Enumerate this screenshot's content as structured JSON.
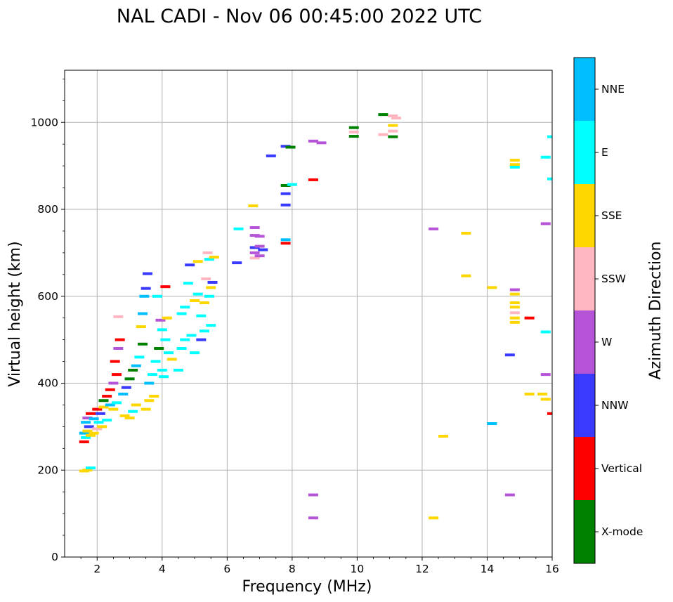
{
  "chart_data": {
    "type": "scatter",
    "title": "NAL CADI - Nov 06 00:45:00 2022 UTC",
    "xlabel": "Frequency (MHz)",
    "ylabel": "Virtual height (km)",
    "xlim": [
      1,
      16
    ],
    "ylim": [
      0,
      1120
    ],
    "xticks": [
      2,
      4,
      6,
      8,
      10,
      12,
      14,
      16
    ],
    "yticks": [
      0,
      200,
      400,
      600,
      800,
      1000
    ],
    "grid": true,
    "colorbar": {
      "label": "Azimuth Direction",
      "categories": [
        {
          "name": "X-mode",
          "color": "#008000"
        },
        {
          "name": "Vertical",
          "color": "#ff0000"
        },
        {
          "name": "NNW",
          "color": "#3a3aff"
        },
        {
          "name": "W",
          "color": "#b554d6"
        },
        {
          "name": "SSW",
          "color": "#ffb6c1"
        },
        {
          "name": "SSE",
          "color": "#ffd700"
        },
        {
          "name": "E",
          "color": "#00ffff"
        },
        {
          "name": "NNE",
          "color": "#00bfff"
        }
      ]
    },
    "points": [
      {
        "x": 1.6,
        "y": 198,
        "c": "SSE"
      },
      {
        "x": 1.7,
        "y": 200,
        "c": "SSE"
      },
      {
        "x": 1.8,
        "y": 205,
        "c": "E"
      },
      {
        "x": 1.6,
        "y": 265,
        "c": "Vertical"
      },
      {
        "x": 1.65,
        "y": 275,
        "c": "E"
      },
      {
        "x": 1.6,
        "y": 285,
        "c": "NNE"
      },
      {
        "x": 1.7,
        "y": 290,
        "c": "SSE"
      },
      {
        "x": 1.75,
        "y": 300,
        "c": "NNW"
      },
      {
        "x": 1.65,
        "y": 310,
        "c": "NNE"
      },
      {
        "x": 1.8,
        "y": 280,
        "c": "SSE"
      },
      {
        "x": 1.9,
        "y": 285,
        "c": "SSE"
      },
      {
        "x": 2.0,
        "y": 295,
        "c": "SSW"
      },
      {
        "x": 1.7,
        "y": 320,
        "c": "W"
      },
      {
        "x": 1.8,
        "y": 330,
        "c": "Vertical"
      },
      {
        "x": 1.9,
        "y": 318,
        "c": "NNE"
      },
      {
        "x": 2.0,
        "y": 340,
        "c": "Vertical"
      },
      {
        "x": 2.1,
        "y": 330,
        "c": "NNW"
      },
      {
        "x": 2.2,
        "y": 345,
        "c": "SSE"
      },
      {
        "x": 2.05,
        "y": 310,
        "c": "E"
      },
      {
        "x": 2.15,
        "y": 300,
        "c": "SSE"
      },
      {
        "x": 2.3,
        "y": 315,
        "c": "E"
      },
      {
        "x": 2.2,
        "y": 360,
        "c": "X-mode"
      },
      {
        "x": 2.3,
        "y": 370,
        "c": "Vertical"
      },
      {
        "x": 2.4,
        "y": 385,
        "c": "Vertical"
      },
      {
        "x": 2.4,
        "y": 350,
        "c": "NNE"
      },
      {
        "x": 2.5,
        "y": 340,
        "c": "SSE"
      },
      {
        "x": 2.6,
        "y": 355,
        "c": "E"
      },
      {
        "x": 2.5,
        "y": 400,
        "c": "W"
      },
      {
        "x": 2.6,
        "y": 420,
        "c": "Vertical"
      },
      {
        "x": 2.55,
        "y": 450,
        "c": "Vertical"
      },
      {
        "x": 2.65,
        "y": 480,
        "c": "W"
      },
      {
        "x": 2.7,
        "y": 500,
        "c": "Vertical"
      },
      {
        "x": 2.65,
        "y": 553,
        "c": "SSW"
      },
      {
        "x": 2.8,
        "y": 375,
        "c": "NNE"
      },
      {
        "x": 2.9,
        "y": 390,
        "c": "NNW"
      },
      {
        "x": 3.0,
        "y": 410,
        "c": "X-mode"
      },
      {
        "x": 2.85,
        "y": 325,
        "c": "SSE"
      },
      {
        "x": 3.0,
        "y": 320,
        "c": "SSE"
      },
      {
        "x": 3.1,
        "y": 335,
        "c": "E"
      },
      {
        "x": 3.2,
        "y": 350,
        "c": "SSE"
      },
      {
        "x": 3.1,
        "y": 430,
        "c": "X-mode"
      },
      {
        "x": 3.2,
        "y": 440,
        "c": "NNE"
      },
      {
        "x": 3.3,
        "y": 460,
        "c": "E"
      },
      {
        "x": 3.4,
        "y": 490,
        "c": "X-mode"
      },
      {
        "x": 3.35,
        "y": 530,
        "c": "SSE"
      },
      {
        "x": 3.4,
        "y": 560,
        "c": "NNE"
      },
      {
        "x": 3.45,
        "y": 600,
        "c": "NNE"
      },
      {
        "x": 3.5,
        "y": 618,
        "c": "NNW"
      },
      {
        "x": 3.55,
        "y": 652,
        "c": "NNW"
      },
      {
        "x": 3.6,
        "y": 400,
        "c": "NNE"
      },
      {
        "x": 3.7,
        "y": 420,
        "c": "E"
      },
      {
        "x": 3.6,
        "y": 360,
        "c": "SSE"
      },
      {
        "x": 3.75,
        "y": 370,
        "c": "SSE"
      },
      {
        "x": 3.5,
        "y": 340,
        "c": "SSE"
      },
      {
        "x": 3.8,
        "y": 450,
        "c": "E"
      },
      {
        "x": 3.9,
        "y": 480,
        "c": "X-mode"
      },
      {
        "x": 4.0,
        "y": 430,
        "c": "E"
      },
      {
        "x": 4.05,
        "y": 415,
        "c": "E"
      },
      {
        "x": 3.95,
        "y": 545,
        "c": "W"
      },
      {
        "x": 4.0,
        "y": 523,
        "c": "E"
      },
      {
        "x": 4.1,
        "y": 622,
        "c": "Vertical"
      },
      {
        "x": 4.2,
        "y": 470,
        "c": "E"
      },
      {
        "x": 4.3,
        "y": 455,
        "c": "SSE"
      },
      {
        "x": 3.85,
        "y": 600,
        "c": "E"
      },
      {
        "x": 4.1,
        "y": 500,
        "c": "E"
      },
      {
        "x": 4.15,
        "y": 550,
        "c": "SSE"
      },
      {
        "x": 4.5,
        "y": 430,
        "c": "E"
      },
      {
        "x": 4.6,
        "y": 480,
        "c": "E"
      },
      {
        "x": 4.7,
        "y": 500,
        "c": "E"
      },
      {
        "x": 4.6,
        "y": 560,
        "c": "E"
      },
      {
        "x": 4.7,
        "y": 575,
        "c": "E"
      },
      {
        "x": 4.8,
        "y": 630,
        "c": "E"
      },
      {
        "x": 4.85,
        "y": 672,
        "c": "NNW"
      },
      {
        "x": 4.9,
        "y": 510,
        "c": "E"
      },
      {
        "x": 5.0,
        "y": 470,
        "c": "E"
      },
      {
        "x": 5.0,
        "y": 590,
        "c": "SSE"
      },
      {
        "x": 5.1,
        "y": 605,
        "c": "E"
      },
      {
        "x": 5.1,
        "y": 680,
        "c": "SSE"
      },
      {
        "x": 5.2,
        "y": 500,
        "c": "NNW"
      },
      {
        "x": 5.3,
        "y": 520,
        "c": "E"
      },
      {
        "x": 5.2,
        "y": 555,
        "c": "E"
      },
      {
        "x": 5.3,
        "y": 585,
        "c": "SSE"
      },
      {
        "x": 5.35,
        "y": 640,
        "c": "SSW"
      },
      {
        "x": 5.4,
        "y": 700,
        "c": "SSW"
      },
      {
        "x": 5.45,
        "y": 685,
        "c": "E"
      },
      {
        "x": 5.5,
        "y": 620,
        "c": "SSE"
      },
      {
        "x": 5.5,
        "y": 533,
        "c": "E"
      },
      {
        "x": 5.45,
        "y": 600,
        "c": "E"
      },
      {
        "x": 5.6,
        "y": 690,
        "c": "SSE"
      },
      {
        "x": 5.55,
        "y": 632,
        "c": "NNW"
      },
      {
        "x": 6.3,
        "y": 677,
        "c": "NNW"
      },
      {
        "x": 6.35,
        "y": 755,
        "c": "E"
      },
      {
        "x": 6.8,
        "y": 808,
        "c": "SSE"
      },
      {
        "x": 6.85,
        "y": 758,
        "c": "W"
      },
      {
        "x": 6.85,
        "y": 740,
        "c": "W"
      },
      {
        "x": 6.85,
        "y": 712,
        "c": "NNW"
      },
      {
        "x": 6.85,
        "y": 700,
        "c": "W"
      },
      {
        "x": 6.85,
        "y": 688,
        "c": "SSW"
      },
      {
        "x": 7.0,
        "y": 738,
        "c": "W"
      },
      {
        "x": 7.0,
        "y": 715,
        "c": "W"
      },
      {
        "x": 7.0,
        "y": 693,
        "c": "W"
      },
      {
        "x": 7.1,
        "y": 707,
        "c": "NNW"
      },
      {
        "x": 7.35,
        "y": 923,
        "c": "NNW"
      },
      {
        "x": 7.8,
        "y": 945,
        "c": "NNW"
      },
      {
        "x": 7.8,
        "y": 855,
        "c": "X-mode"
      },
      {
        "x": 7.8,
        "y": 836,
        "c": "NNW"
      },
      {
        "x": 7.8,
        "y": 810,
        "c": "NNW"
      },
      {
        "x": 7.8,
        "y": 730,
        "c": "NNE"
      },
      {
        "x": 7.8,
        "y": 722,
        "c": "Vertical"
      },
      {
        "x": 8.0,
        "y": 857,
        "c": "E"
      },
      {
        "x": 7.95,
        "y": 943,
        "c": "X-mode"
      },
      {
        "x": 8.65,
        "y": 957,
        "c": "W"
      },
      {
        "x": 8.9,
        "y": 953,
        "c": "W"
      },
      {
        "x": 8.65,
        "y": 868,
        "c": "Vertical"
      },
      {
        "x": 8.65,
        "y": 143,
        "c": "W"
      },
      {
        "x": 8.65,
        "y": 90,
        "c": "W"
      },
      {
        "x": 9.9,
        "y": 988,
        "c": "X-mode"
      },
      {
        "x": 9.9,
        "y": 968,
        "c": "X-mode"
      },
      {
        "x": 9.9,
        "y": 978,
        "c": "SSW"
      },
      {
        "x": 10.8,
        "y": 1018,
        "c": "X-mode"
      },
      {
        "x": 10.8,
        "y": 972,
        "c": "SSW"
      },
      {
        "x": 11.1,
        "y": 1015,
        "c": "SSW"
      },
      {
        "x": 11.2,
        "y": 1010,
        "c": "SSW"
      },
      {
        "x": 11.1,
        "y": 993,
        "c": "SSE"
      },
      {
        "x": 11.1,
        "y": 980,
        "c": "SSW"
      },
      {
        "x": 11.1,
        "y": 967,
        "c": "X-mode"
      },
      {
        "x": 12.35,
        "y": 755,
        "c": "W"
      },
      {
        "x": 12.35,
        "y": 90,
        "c": "SSE"
      },
      {
        "x": 12.65,
        "y": 278,
        "c": "SSE"
      },
      {
        "x": 13.35,
        "y": 745,
        "c": "SSE"
      },
      {
        "x": 13.35,
        "y": 647,
        "c": "SSE"
      },
      {
        "x": 14.15,
        "y": 620,
        "c": "SSE"
      },
      {
        "x": 14.15,
        "y": 307,
        "c": "NNE"
      },
      {
        "x": 14.7,
        "y": 465,
        "c": "NNW"
      },
      {
        "x": 14.7,
        "y": 143,
        "c": "W"
      },
      {
        "x": 14.85,
        "y": 913,
        "c": "SSE"
      },
      {
        "x": 14.85,
        "y": 903,
        "c": "SSE"
      },
      {
        "x": 14.85,
        "y": 897,
        "c": "E"
      },
      {
        "x": 14.85,
        "y": 615,
        "c": "W"
      },
      {
        "x": 14.85,
        "y": 605,
        "c": "SSE"
      },
      {
        "x": 14.85,
        "y": 585,
        "c": "SSE"
      },
      {
        "x": 14.85,
        "y": 575,
        "c": "SSE"
      },
      {
        "x": 14.85,
        "y": 562,
        "c": "SSW"
      },
      {
        "x": 14.85,
        "y": 550,
        "c": "SSE"
      },
      {
        "x": 14.85,
        "y": 540,
        "c": "SSE"
      },
      {
        "x": 15.3,
        "y": 550,
        "c": "Vertical"
      },
      {
        "x": 15.3,
        "y": 375,
        "c": "SSE"
      },
      {
        "x": 15.7,
        "y": 375,
        "c": "SSE"
      },
      {
        "x": 15.8,
        "y": 363,
        "c": "SSE"
      },
      {
        "x": 15.8,
        "y": 518,
        "c": "E"
      },
      {
        "x": 15.8,
        "y": 920,
        "c": "E"
      },
      {
        "x": 15.8,
        "y": 767,
        "c": "W"
      },
      {
        "x": 15.8,
        "y": 420,
        "c": "W"
      },
      {
        "x": 16.0,
        "y": 967,
        "c": "E"
      },
      {
        "x": 16.0,
        "y": 870,
        "c": "E"
      },
      {
        "x": 16.0,
        "y": 330,
        "c": "Vertical"
      }
    ]
  }
}
